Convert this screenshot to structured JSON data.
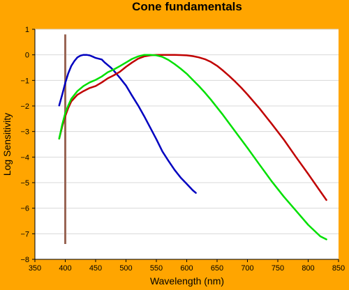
{
  "chart_data": {
    "type": "line",
    "title": "Cone fundamentals",
    "xlabel": "Wavelength (nm)",
    "ylabel": "Log Sensitivity",
    "xlim": [
      350,
      850
    ],
    "ylim": [
      -8,
      1
    ],
    "xticks": [
      "350",
      "400",
      "450",
      "500",
      "550",
      "600",
      "650",
      "700",
      "750",
      "800",
      "850"
    ],
    "yticks": [
      "1",
      "0",
      "−1",
      "−2",
      "−3",
      "−4",
      "−5",
      "−6",
      "−7",
      "−8"
    ],
    "grid": "horizontal",
    "background_color": "#FFA500",
    "plot_background_color": "#FFFFFF",
    "grid_color": "#D8D8D8",
    "marker_line": {
      "x": 400,
      "y_range": [
        -7.4,
        0.8
      ],
      "color": "#996655"
    },
    "series": [
      {
        "color": "#0000C0",
        "x": [
          390,
          395,
          400,
          405,
          410,
          415,
          420,
          425,
          430,
          435,
          440,
          445,
          450,
          455,
          460,
          465,
          470,
          475,
          480,
          485,
          490,
          495,
          500,
          510,
          520,
          530,
          540,
          550,
          560,
          570,
          580,
          590,
          600,
          610,
          615
        ],
        "y": [
          -1.98,
          -1.55,
          -1.1,
          -0.72,
          -0.43,
          -0.24,
          -0.1,
          -0.03,
          0.0,
          0.0,
          -0.02,
          -0.07,
          -0.12,
          -0.15,
          -0.18,
          -0.3,
          -0.4,
          -0.5,
          -0.62,
          -0.76,
          -0.9,
          -1.05,
          -1.2,
          -1.6,
          -1.98,
          -2.4,
          -2.85,
          -3.3,
          -3.78,
          -4.15,
          -4.5,
          -4.8,
          -5.05,
          -5.3,
          -5.4
        ]
      },
      {
        "color": "#C00000",
        "x": [
          390,
          395,
          400,
          405,
          410,
          420,
          430,
          440,
          450,
          460,
          470,
          480,
          490,
          500,
          510,
          520,
          530,
          540,
          550,
          560,
          570,
          580,
          590,
          600,
          610,
          620,
          630,
          640,
          650,
          660,
          670,
          680,
          690,
          700,
          720,
          740,
          760,
          780,
          800,
          820,
          830
        ],
        "y": [
          -3.28,
          -2.8,
          -2.4,
          -2.08,
          -1.82,
          -1.56,
          -1.42,
          -1.3,
          -1.22,
          -1.08,
          -0.92,
          -0.8,
          -0.66,
          -0.47,
          -0.3,
          -0.15,
          -0.06,
          -0.02,
          0.0,
          0.0,
          0.0,
          0.0,
          -0.01,
          -0.02,
          -0.05,
          -0.1,
          -0.17,
          -0.28,
          -0.43,
          -0.62,
          -0.83,
          -1.05,
          -1.29,
          -1.55,
          -2.1,
          -2.7,
          -3.32,
          -4.0,
          -4.66,
          -5.34,
          -5.68
        ]
      },
      {
        "color": "#00E000",
        "x": [
          390,
          395,
          400,
          405,
          410,
          420,
          430,
          440,
          450,
          460,
          470,
          480,
          490,
          500,
          510,
          520,
          530,
          540,
          550,
          560,
          570,
          580,
          590,
          600,
          610,
          620,
          630,
          640,
          650,
          660,
          680,
          700,
          720,
          740,
          760,
          780,
          800,
          820,
          830
        ],
        "y": [
          -3.28,
          -2.72,
          -2.28,
          -1.98,
          -1.72,
          -1.42,
          -1.22,
          -1.08,
          -0.98,
          -0.85,
          -0.68,
          -0.57,
          -0.44,
          -0.3,
          -0.16,
          -0.06,
          0.0,
          0.0,
          -0.02,
          -0.08,
          -0.2,
          -0.36,
          -0.54,
          -0.74,
          -0.98,
          -1.22,
          -1.48,
          -1.76,
          -2.06,
          -2.36,
          -3.0,
          -3.64,
          -4.3,
          -4.95,
          -5.55,
          -6.1,
          -6.65,
          -7.1,
          -7.22
        ]
      }
    ]
  }
}
